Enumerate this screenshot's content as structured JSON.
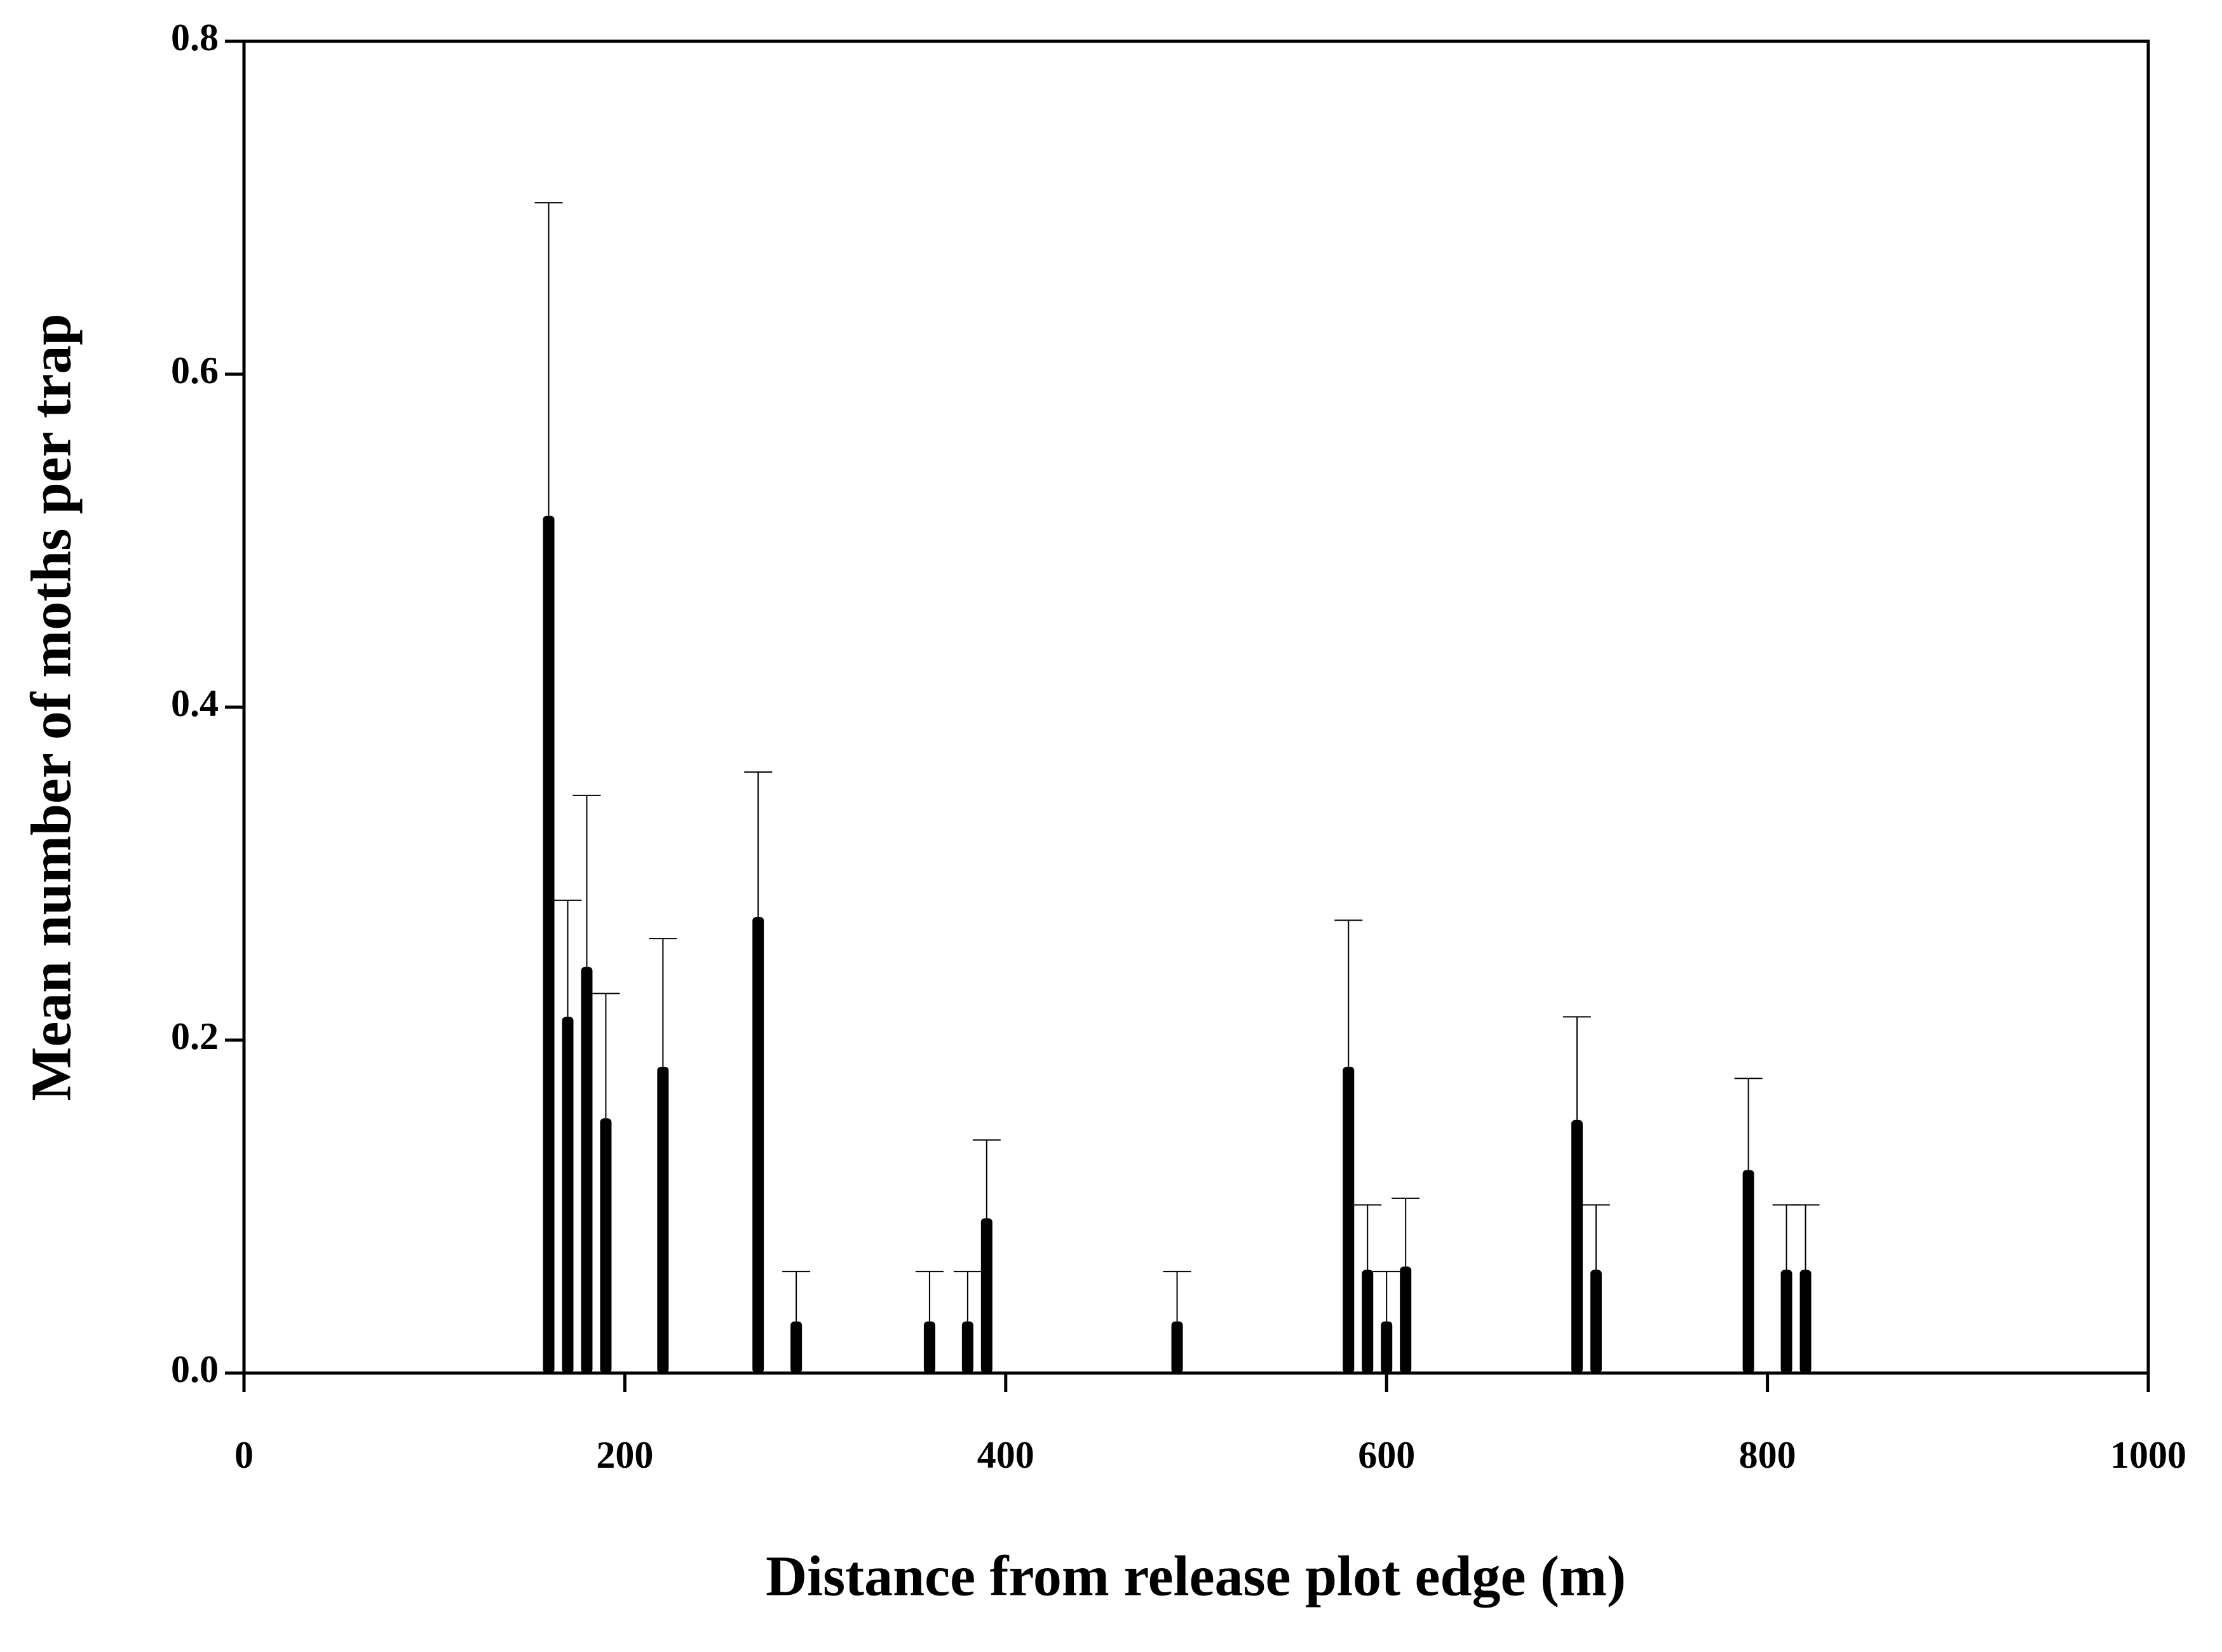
{
  "chart_data": {
    "type": "bar",
    "x_label": "Distance from release plot edge (m)",
    "y_label": "Mean number of moths per trap",
    "x": [
      160,
      170,
      180,
      190,
      220,
      270,
      290,
      360,
      380,
      390,
      490,
      580,
      590,
      600,
      610,
      700,
      710,
      790,
      810,
      820
    ],
    "values": [
      0.515,
      0.214,
      0.244,
      0.153,
      0.184,
      0.274,
      0.031,
      0.031,
      0.031,
      0.093,
      0.031,
      0.184,
      0.062,
      0.031,
      0.064,
      0.152,
      0.062,
      0.122,
      0.062,
      0.062
    ],
    "errors": [
      0.188,
      0.07,
      0.103,
      0.075,
      0.077,
      0.087,
      0.03,
      0.03,
      0.03,
      0.047,
      0.03,
      0.088,
      0.039,
      0.03,
      0.041,
      0.062,
      0.039,
      0.055,
      0.039,
      0.039
    ],
    "color": "#000000",
    "xlim": [
      0,
      1000
    ],
    "xticks": [
      0,
      200,
      400,
      600,
      800,
      1000
    ],
    "ylim": [
      0,
      0.8
    ],
    "yticks": [
      {
        "value": 0,
        "label": "0.0"
      },
      0.2,
      0.4,
      0.6,
      0.8
    ]
  }
}
